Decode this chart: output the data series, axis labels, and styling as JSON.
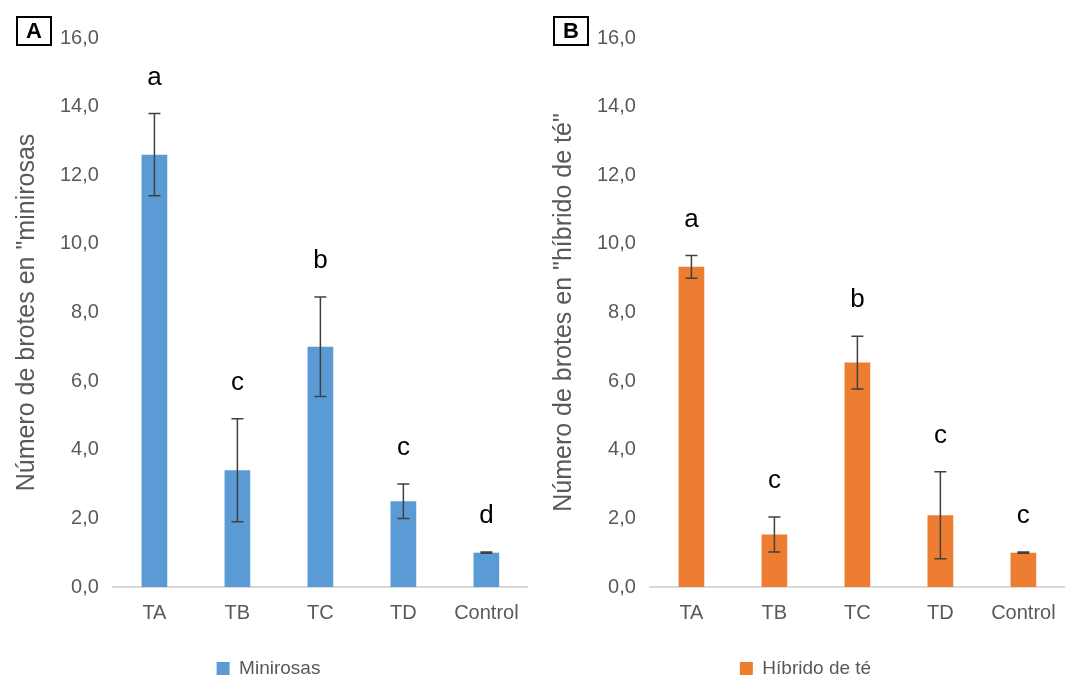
{
  "chart_data": [
    {
      "type": "bar",
      "title": "A",
      "ylabel": "Número de brotes en \"minirosas",
      "categories": [
        "TA",
        "TB",
        "TC",
        "TD",
        "Control"
      ],
      "series": [
        {
          "name": "Minirosas",
          "color": "#5b9bd5",
          "values": [
            12.6,
            3.4,
            7.0,
            2.5,
            1.0
          ],
          "errors": [
            1.2,
            1.5,
            1.45,
            0.5,
            0.02
          ]
        }
      ],
      "ylim": [
        0,
        16
      ],
      "yticks": [
        {
          "value": 0,
          "label": "0,0"
        },
        {
          "value": 2,
          "label": "2,0"
        },
        {
          "value": 4,
          "label": "4,0"
        },
        {
          "value": 6,
          "label": "6,0"
        },
        {
          "value": 8,
          "label": "8,0"
        },
        {
          "value": 10,
          "label": "10,0"
        },
        {
          "value": 12,
          "label": "12,0"
        },
        {
          "value": 14,
          "label": "14,0"
        },
        {
          "value": 16,
          "label": "16,0"
        }
      ],
      "annotations": [
        "a",
        "c",
        "b",
        "c",
        "d"
      ],
      "legend": "bottom",
      "grid": false
    },
    {
      "type": "bar",
      "title": "B",
      "ylabel": "Número de brotes en \"híbrido de té\"",
      "categories": [
        "TA",
        "TB",
        "TC",
        "TD",
        "Control"
      ],
      "series": [
        {
          "name": "Híbrido de té",
          "color": "#ed7d31",
          "values": [
            9.33,
            1.53,
            6.54,
            2.09,
            1.0
          ],
          "errors": [
            0.33,
            0.51,
            0.77,
            1.27,
            0.02
          ]
        }
      ],
      "ylim": [
        0,
        16
      ],
      "yticks": [
        {
          "value": 0,
          "label": "0,0"
        },
        {
          "value": 2,
          "label": "2,0"
        },
        {
          "value": 4,
          "label": "4,0"
        },
        {
          "value": 6,
          "label": "6,0"
        },
        {
          "value": 8,
          "label": "8,0"
        },
        {
          "value": 10,
          "label": "10,0"
        },
        {
          "value": 12,
          "label": "12,0"
        },
        {
          "value": 14,
          "label": "14,0"
        },
        {
          "value": 16,
          "label": "16,0"
        }
      ],
      "annotations": [
        "a",
        "c",
        "b",
        "c",
        "c"
      ],
      "legend": "bottom",
      "grid": false
    }
  ]
}
